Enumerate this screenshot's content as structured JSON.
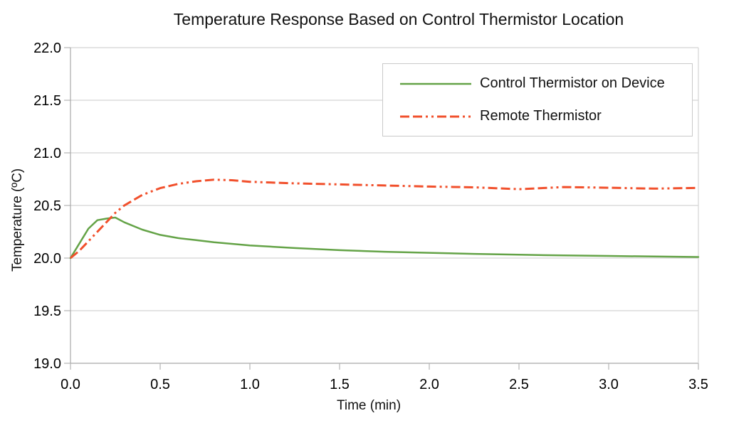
{
  "title": "Temperature Response Based on Control Thermistor Location",
  "colors": {
    "grid": "#d4d4d4",
    "axis": "#a8a8a8",
    "tick": "#b4b4b4",
    "text": "#000000",
    "legend_border": "#c9c9c9",
    "control_series": "#64a347",
    "remote_series": "#f1502c"
  },
  "chart_data": {
    "type": "line",
    "title": "Temperature Response Based on Control Thermistor Location",
    "xlabel": "Time (min)",
    "ylabel": "Temperature (ºC)",
    "xlim": [
      0.0,
      3.5
    ],
    "ylim": [
      19.0,
      22.0
    ],
    "x_ticks": [
      "0.0",
      "0.5",
      "1.0",
      "1.5",
      "2.0",
      "2.5",
      "3.0",
      "3.5"
    ],
    "y_ticks": [
      "19.0",
      "19.5",
      "20.0",
      "20.5",
      "21.0",
      "21.5",
      "22.0"
    ],
    "grid": "horizontal-only",
    "legend_position": "top-right",
    "x": [
      0.0,
      0.05,
      0.1,
      0.15,
      0.2,
      0.25,
      0.3,
      0.4,
      0.5,
      0.6,
      0.7,
      0.8,
      0.9,
      1.0,
      1.25,
      1.5,
      1.75,
      2.0,
      2.25,
      2.5,
      2.75,
      3.0,
      3.25,
      3.5
    ],
    "series": [
      {
        "name": "Control Thermistor on Device",
        "color": "#64a347",
        "style": "solid",
        "width": 2.5,
        "dasharray": "",
        "values": [
          20.0,
          20.14,
          20.28,
          20.36,
          20.375,
          20.385,
          20.34,
          20.27,
          20.22,
          20.19,
          20.17,
          20.15,
          20.135,
          20.12,
          20.095,
          20.075,
          20.06,
          20.05,
          20.04,
          20.032,
          20.025,
          20.02,
          20.015,
          20.01
        ]
      },
      {
        "name": "Remote Thermistor",
        "color": "#f1502c",
        "style": "dash-dash-dot-dot",
        "width": 3,
        "dasharray": "13 5 13 5 3 5 3 5",
        "values": [
          20.0,
          20.07,
          20.16,
          20.25,
          20.34,
          20.43,
          20.5,
          20.6,
          20.665,
          20.705,
          20.73,
          20.745,
          20.74,
          20.725,
          20.71,
          20.7,
          20.69,
          20.68,
          20.672,
          20.655,
          20.675,
          20.668,
          20.66,
          20.667
        ]
      }
    ]
  }
}
